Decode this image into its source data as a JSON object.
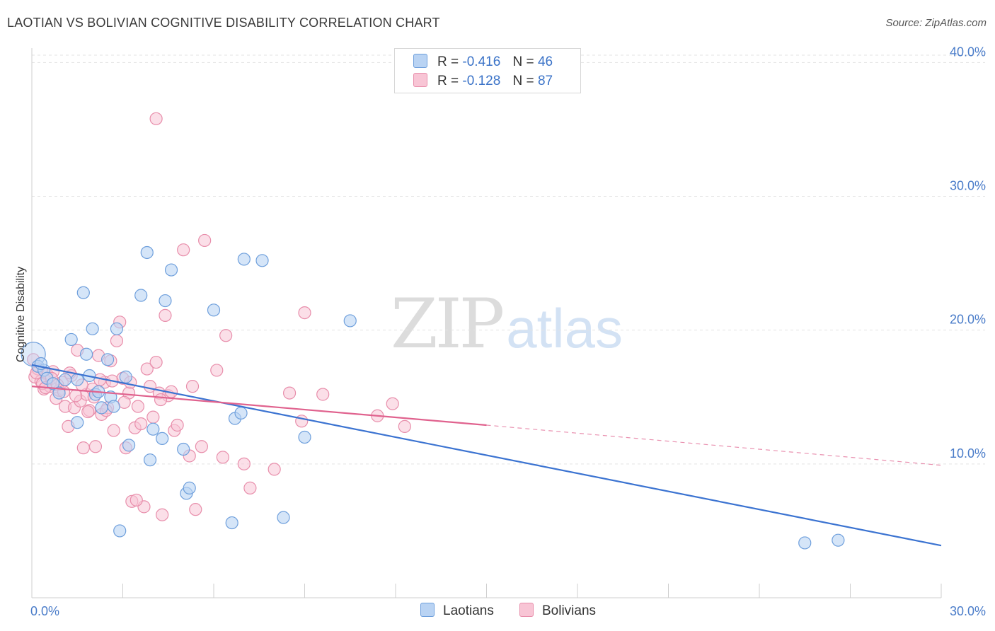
{
  "title": "LAOTIAN VS BOLIVIAN COGNITIVE DISABILITY CORRELATION CHART",
  "source": "Source: ZipAtlas.com",
  "watermark": {
    "part1": "ZIP",
    "part2": "atlas"
  },
  "colors": {
    "laotians_fill": "#b9d3f3",
    "laotians_stroke": "#6e9fdc",
    "laotians_line": "#3b73d1",
    "bolivians_fill": "#f8c5d5",
    "bolivians_stroke": "#e88eab",
    "bolivians_line": "#e0628e",
    "grid": "#e3e3e3",
    "axis_text": "#4a7cc9"
  },
  "legend": {
    "rows": [
      {
        "r_label": "R =",
        "r_value": "-0.416",
        "n_label": "N =",
        "n_value": "46"
      },
      {
        "r_label": "R =",
        "r_value": "-0.128",
        "n_label": "N =",
        "n_value": "87"
      }
    ]
  },
  "bottom_legend": {
    "laotians": "Laotians",
    "bolivians": "Bolivians"
  },
  "chart_data": {
    "type": "scatter",
    "title": "LAOTIAN VS BOLIVIAN COGNITIVE DISABILITY CORRELATION CHART",
    "xlabel": "",
    "ylabel": "Cognitive Disability",
    "xlim": [
      0,
      30
    ],
    "ylim": [
      0,
      41.5
    ],
    "x_tick_labels": [
      "0.0%",
      "30.0%"
    ],
    "y_tick_labels": [
      "10.0%",
      "20.0%",
      "30.0%",
      "40.0%"
    ],
    "y_ticks": [
      10,
      20,
      30,
      40
    ],
    "grid": true,
    "legend_position": "top-center",
    "series": [
      {
        "name": "Laotians",
        "r": -0.416,
        "n": 46,
        "trend": {
          "x": [
            0.0,
            30.0
          ],
          "y": [
            17.4,
            3.9
          ]
        },
        "points": [
          [
            0.05,
            18.2
          ],
          [
            0.2,
            17.3
          ],
          [
            0.4,
            17.0
          ],
          [
            0.5,
            16.4
          ],
          [
            0.7,
            16.0
          ],
          [
            0.9,
            15.3
          ],
          [
            1.1,
            16.3
          ],
          [
            1.3,
            19.3
          ],
          [
            1.5,
            16.3
          ],
          [
            1.5,
            13.1
          ],
          [
            1.7,
            22.8
          ],
          [
            1.8,
            18.2
          ],
          [
            1.9,
            16.6
          ],
          [
            2.0,
            20.1
          ],
          [
            2.1,
            15.2
          ],
          [
            2.2,
            15.4
          ],
          [
            2.3,
            14.2
          ],
          [
            2.5,
            17.8
          ],
          [
            2.6,
            15.0
          ],
          [
            2.7,
            14.3
          ],
          [
            2.8,
            20.1
          ],
          [
            2.9,
            5.0
          ],
          [
            3.1,
            16.5
          ],
          [
            3.2,
            11.4
          ],
          [
            3.6,
            22.6
          ],
          [
            3.8,
            25.8
          ],
          [
            3.9,
            10.3
          ],
          [
            4.0,
            12.6
          ],
          [
            4.3,
            11.9
          ],
          [
            4.4,
            22.2
          ],
          [
            4.6,
            24.5
          ],
          [
            5.0,
            11.1
          ],
          [
            5.1,
            7.8
          ],
          [
            5.2,
            8.2
          ],
          [
            6.0,
            21.5
          ],
          [
            6.6,
            5.6
          ],
          [
            6.7,
            13.4
          ],
          [
            6.9,
            13.8
          ],
          [
            7.0,
            25.3
          ],
          [
            7.6,
            25.2
          ],
          [
            8.3,
            6.0
          ],
          [
            9.0,
            12.0
          ],
          [
            10.5,
            20.7
          ],
          [
            25.5,
            4.1
          ],
          [
            26.6,
            4.3
          ],
          [
            0.3,
            17.5
          ]
        ]
      },
      {
        "name": "Bolivians",
        "r": -0.128,
        "n": 87,
        "trend": {
          "x": [
            0.0,
            15.0
          ],
          "y": [
            15.8,
            12.9
          ]
        },
        "trend_dashed": {
          "x": [
            15.0,
            30.0
          ],
          "y": [
            12.9,
            9.9
          ]
        },
        "points": [
          [
            0.05,
            17.8
          ],
          [
            0.1,
            16.5
          ],
          [
            0.2,
            17.1
          ],
          [
            0.3,
            16.2
          ],
          [
            0.4,
            15.6
          ],
          [
            0.5,
            16.7
          ],
          [
            0.6,
            15.8
          ],
          [
            0.7,
            16.9
          ],
          [
            0.8,
            14.9
          ],
          [
            0.9,
            15.5
          ],
          [
            1.0,
            16.1
          ],
          [
            1.1,
            14.3
          ],
          [
            1.2,
            12.8
          ],
          [
            1.3,
            16.6
          ],
          [
            1.4,
            14.2
          ],
          [
            1.5,
            18.5
          ],
          [
            1.6,
            14.7
          ],
          [
            1.7,
            11.2
          ],
          [
            1.8,
            15.2
          ],
          [
            1.9,
            14.0
          ],
          [
            2.0,
            15.6
          ],
          [
            2.1,
            11.3
          ],
          [
            2.2,
            18.1
          ],
          [
            2.3,
            13.7
          ],
          [
            2.4,
            16.1
          ],
          [
            2.5,
            14.2
          ],
          [
            2.6,
            17.7
          ],
          [
            2.7,
            12.5
          ],
          [
            2.8,
            19.2
          ],
          [
            2.9,
            20.6
          ],
          [
            3.0,
            16.4
          ],
          [
            3.1,
            11.2
          ],
          [
            3.2,
            15.3
          ],
          [
            3.3,
            7.2
          ],
          [
            3.4,
            12.7
          ],
          [
            3.5,
            14.3
          ],
          [
            3.6,
            13.0
          ],
          [
            3.7,
            6.8
          ],
          [
            3.8,
            17.1
          ],
          [
            3.9,
            15.8
          ],
          [
            4.0,
            13.5
          ],
          [
            4.1,
            17.6
          ],
          [
            4.2,
            15.3
          ],
          [
            4.3,
            6.2
          ],
          [
            4.4,
            21.1
          ],
          [
            4.5,
            15.1
          ],
          [
            4.6,
            15.4
          ],
          [
            4.7,
            12.5
          ],
          [
            4.8,
            12.9
          ],
          [
            5.0,
            26.0
          ],
          [
            5.2,
            10.6
          ],
          [
            5.3,
            15.8
          ],
          [
            5.4,
            6.6
          ],
          [
            5.6,
            11.3
          ],
          [
            5.7,
            26.7
          ],
          [
            6.1,
            17.0
          ],
          [
            6.3,
            10.5
          ],
          [
            6.4,
            19.6
          ],
          [
            7.0,
            10.0
          ],
          [
            7.2,
            8.2
          ],
          [
            8.0,
            9.6
          ],
          [
            8.5,
            15.3
          ],
          [
            8.9,
            13.2
          ],
          [
            9.0,
            21.3
          ],
          [
            9.6,
            15.2
          ],
          [
            11.4,
            13.6
          ],
          [
            11.9,
            14.5
          ],
          [
            12.3,
            12.8
          ],
          [
            4.1,
            35.8
          ],
          [
            0.15,
            16.8
          ],
          [
            0.35,
            16.0
          ],
          [
            0.45,
            15.7
          ],
          [
            0.65,
            16.4
          ],
          [
            0.85,
            15.9
          ],
          [
            1.05,
            15.4
          ],
          [
            1.25,
            16.8
          ],
          [
            1.45,
            15.1
          ],
          [
            1.65,
            15.9
          ],
          [
            1.85,
            13.9
          ],
          [
            2.05,
            15.0
          ],
          [
            2.25,
            16.3
          ],
          [
            2.45,
            14.0
          ],
          [
            2.65,
            16.2
          ],
          [
            3.05,
            14.6
          ],
          [
            3.25,
            16.1
          ],
          [
            3.45,
            7.3
          ],
          [
            4.25,
            14.8
          ]
        ]
      }
    ]
  }
}
